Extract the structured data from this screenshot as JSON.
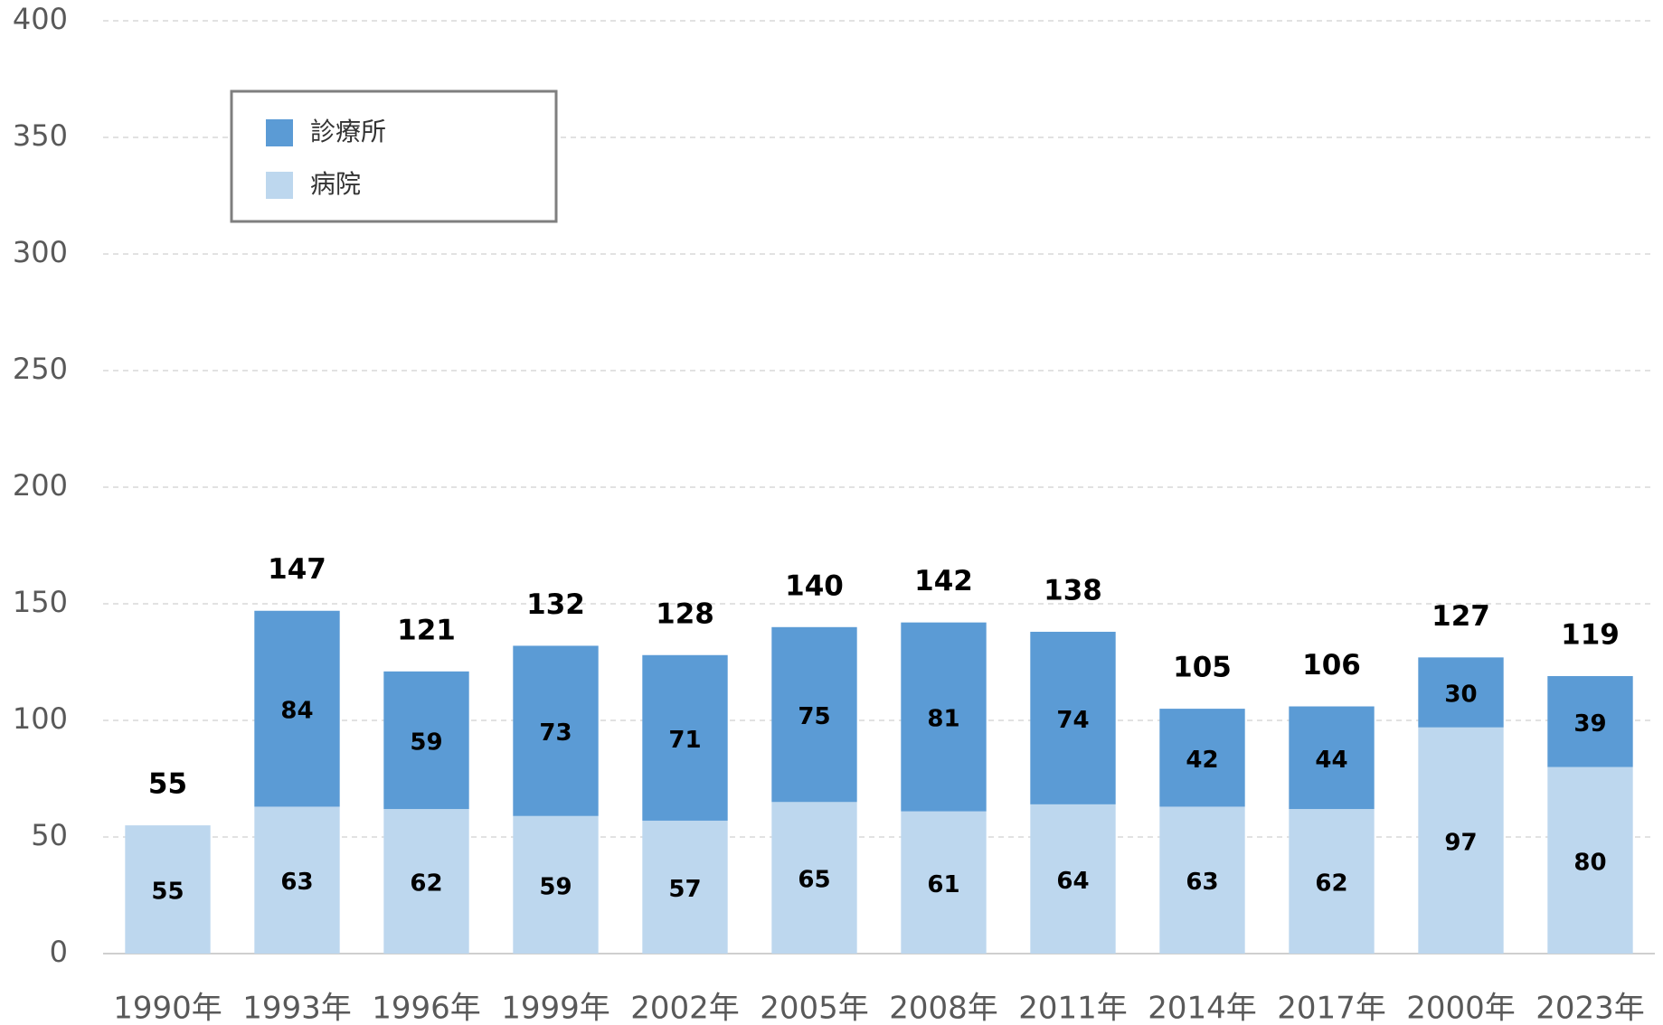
{
  "chart_data": {
    "type": "stacked_bar",
    "categories": [
      "1990年",
      "1993年",
      "1996年",
      "1999年",
      "2002年",
      "2005年",
      "2008年",
      "2011年",
      "2014年",
      "2017年",
      "2000年",
      "2023年"
    ],
    "series": [
      {
        "name": "病院",
        "color": "#bdd7ee",
        "values": [
          55,
          63,
          62,
          59,
          57,
          65,
          61,
          64,
          63,
          62,
          97,
          80
        ]
      },
      {
        "name": "診療所",
        "color": "#5b9bd5",
        "values": [
          null,
          84,
          59,
          73,
          71,
          75,
          81,
          74,
          42,
          44,
          30,
          39
        ]
      }
    ],
    "totals": [
      55,
      147,
      121,
      132,
      128,
      140,
      142,
      138,
      105,
      106,
      127,
      119
    ],
    "ylim": [
      0,
      400
    ],
    "yticks": [
      0,
      50,
      100,
      150,
      200,
      250,
      300,
      350,
      400
    ],
    "grid": true,
    "legend": "upper left"
  }
}
